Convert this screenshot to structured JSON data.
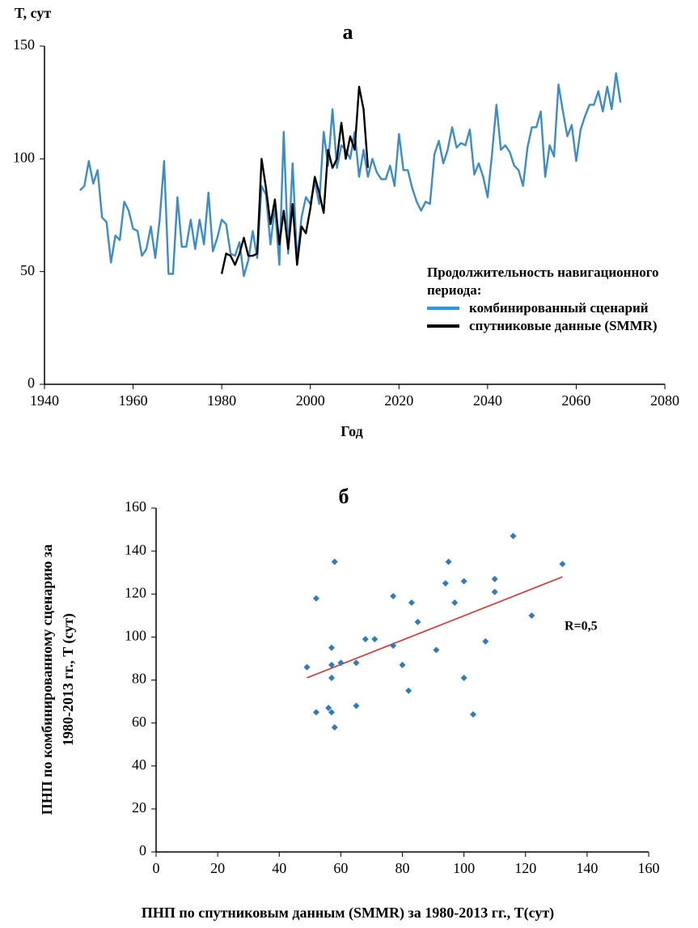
{
  "chart_data": [
    {
      "type": "line",
      "title": "а",
      "ylabel": "T, сут",
      "xlabel": "Год",
      "legend_title": "Продолжительность навигационного периода:",
      "xlim": [
        1940,
        2080
      ],
      "xticks": [
        1940,
        1960,
        1980,
        2000,
        2020,
        2040,
        2060,
        2080
      ],
      "ylim": [
        0,
        150
      ],
      "yticks": [
        0,
        50,
        100,
        150
      ],
      "grid": false,
      "series": [
        {
          "name": "комбинированный сценарий",
          "color": "#3a8dc9",
          "legend_color": "#1e9be9",
          "x": [
            1948,
            1949,
            1950,
            1951,
            1952,
            1953,
            1954,
            1955,
            1956,
            1957,
            1958,
            1959,
            1960,
            1961,
            1962,
            1963,
            1964,
            1965,
            1966,
            1967,
            1968,
            1969,
            1970,
            1971,
            1972,
            1973,
            1974,
            1975,
            1976,
            1977,
            1978,
            1979,
            1980,
            1981,
            1982,
            1983,
            1984,
            1985,
            1986,
            1987,
            1988,
            1989,
            1990,
            1991,
            1992,
            1993,
            1994,
            1995,
            1996,
            1997,
            1998,
            1999,
            2000,
            2001,
            2002,
            2003,
            2004,
            2005,
            2006,
            2007,
            2008,
            2009,
            2010,
            2011,
            2012,
            2013,
            2014,
            2015,
            2016,
            2017,
            2018,
            2019,
            2020,
            2021,
            2022,
            2023,
            2024,
            2025,
            2026,
            2027,
            2028,
            2029,
            2030,
            2031,
            2032,
            2033,
            2034,
            2035,
            2036,
            2037,
            2038,
            2039,
            2040,
            2041,
            2042,
            2043,
            2044,
            2045,
            2046,
            2047,
            2048,
            2049,
            2050,
            2051,
            2052,
            2053,
            2054,
            2055,
            2056,
            2057,
            2058,
            2059,
            2060,
            2061,
            2062,
            2063,
            2064,
            2065,
            2066,
            2067,
            2068,
            2069,
            2070
          ],
          "values": [
            86,
            88,
            99,
            89,
            95,
            74,
            72,
            54,
            66,
            64,
            81,
            77,
            69,
            68,
            57,
            60,
            70,
            56,
            73,
            99,
            49,
            49,
            83,
            61,
            61,
            73,
            60,
            73,
            62,
            85,
            59,
            65,
            73,
            71,
            58,
            57,
            63,
            48,
            55,
            68,
            56,
            88,
            84,
            62,
            79,
            53,
            112,
            58,
            98,
            55,
            74,
            83,
            80,
            90,
            80,
            112,
            97,
            122,
            96,
            106,
            104,
            100,
            112,
            92,
            104,
            92,
            100,
            94,
            91,
            91,
            97,
            88,
            111,
            95,
            95,
            87,
            81,
            77,
            81,
            80,
            102,
            108,
            98,
            104,
            114,
            105,
            107,
            106,
            113,
            93,
            98,
            92,
            83,
            102,
            124,
            104,
            106,
            103,
            97,
            95,
            88,
            105,
            114,
            114,
            121,
            92,
            106,
            101,
            133,
            121,
            110,
            115,
            99,
            113,
            119,
            124,
            124,
            130,
            121,
            132,
            122,
            138,
            125
          ]
        },
        {
          "name": "спутниковые данные (SMMR)",
          "color": "#000000",
          "legend_color": "#000000",
          "x": [
            1980,
            1981,
            1982,
            1983,
            1984,
            1985,
            1986,
            1987,
            1988,
            1989,
            1990,
            1991,
            1992,
            1993,
            1994,
            1995,
            1996,
            1997,
            1998,
            1999,
            2000,
            2001,
            2002,
            2003,
            2004,
            2005,
            2006,
            2007,
            2008,
            2009,
            2010,
            2011,
            2012,
            2013
          ],
          "values": [
            49,
            58,
            57,
            53,
            58,
            65,
            57,
            57,
            58,
            100,
            87,
            71,
            82,
            62,
            77,
            60,
            80,
            53,
            70,
            67,
            78,
            92,
            85,
            76,
            104,
            96,
            100,
            116,
            100,
            110,
            104,
            132,
            122,
            96
          ]
        }
      ]
    },
    {
      "type": "scatter",
      "title": "б",
      "ylabel": [
        "ПНП по комбинированному сценарию за",
        "1980-2013 гг., T (сут)"
      ],
      "xlabel": "ПНП по спутниковым данным (SMMR) за 1980-2013 гг., T(сут)",
      "xlim": [
        0,
        160
      ],
      "xticks": [
        0,
        20,
        40,
        60,
        80,
        100,
        120,
        140,
        160
      ],
      "ylim": [
        0,
        160
      ],
      "yticks": [
        0,
        20,
        40,
        60,
        80,
        100,
        120,
        140,
        160
      ],
      "grid": false,
      "color": "#2e7bbf",
      "x": [
        49,
        52,
        52,
        56,
        57,
        57,
        57,
        58,
        57,
        58,
        60,
        65,
        65,
        68,
        71,
        77,
        77,
        80,
        82,
        83,
        85,
        91,
        94,
        95,
        97,
        100,
        100,
        103,
        107,
        110,
        110,
        116,
        122,
        132
      ],
      "values": [
        86,
        118,
        65,
        67,
        65,
        81,
        95,
        135,
        87,
        58,
        88,
        88,
        68,
        99,
        99,
        119,
        96,
        87,
        75,
        116,
        107,
        94,
        125,
        135,
        116,
        126,
        81,
        64,
        98,
        121,
        127,
        147,
        110,
        134
      ],
      "trendline": {
        "color": "#e0302a",
        "x": [
          49,
          132
        ],
        "values": [
          81,
          128
        ]
      },
      "annotation": "R=0,5"
    }
  ]
}
